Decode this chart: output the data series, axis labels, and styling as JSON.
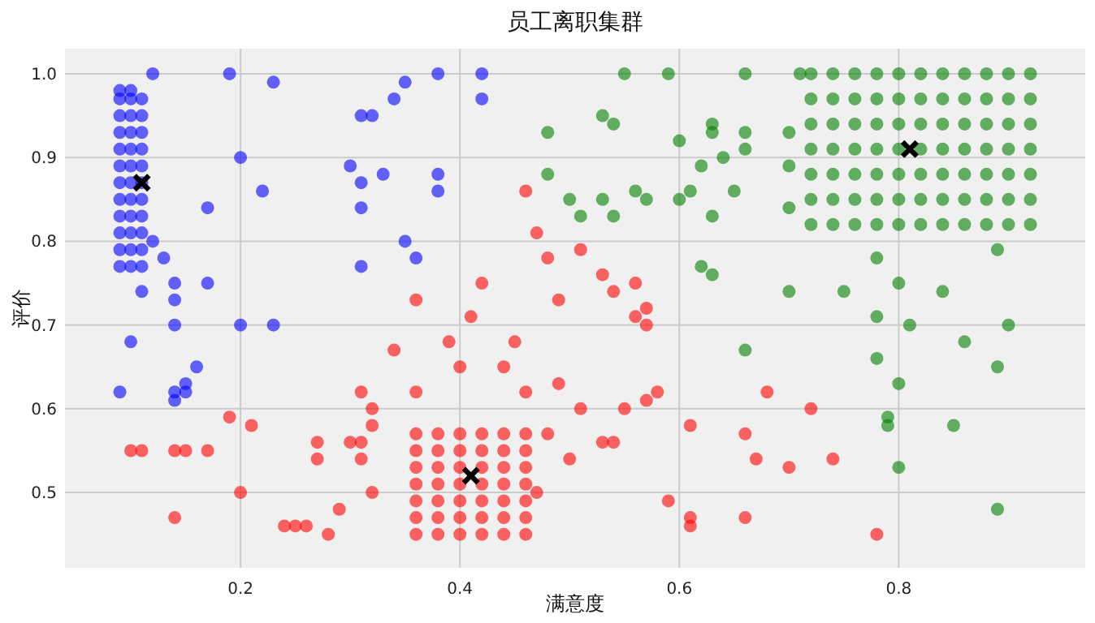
{
  "chart_data": {
    "type": "scatter",
    "title": "员工离职集群",
    "xlabel": "满意度",
    "ylabel": "评价",
    "xlim": [
      0.04,
      0.97
    ],
    "ylim": [
      0.41,
      1.03
    ],
    "xticks": [
      0.2,
      0.4,
      0.6,
      0.8
    ],
    "yticks": [
      0.5,
      0.6,
      0.7,
      0.8,
      0.9,
      {
        "value": 1,
        "label": "1.0"
      }
    ],
    "grid": true,
    "marker": "circle",
    "series": [
      {
        "color": "#0000ff",
        "x": [
          0.09,
          0.09,
          0.09,
          0.09,
          0.09,
          0.09,
          0.09,
          0.09,
          0.09,
          0.09,
          0.09,
          0.09,
          0.1,
          0.1,
          0.1,
          0.1,
          0.1,
          0.1,
          0.1,
          0.1,
          0.1,
          0.1,
          0.1,
          0.1,
          0.11,
          0.11,
          0.11,
          0.11,
          0.11,
          0.11,
          0.11,
          0.11,
          0.11,
          0.11,
          0.11,
          0.12,
          0.19,
          0.23,
          0.35,
          0.34,
          0.38,
          0.42,
          0.42,
          0.31,
          0.32,
          0.2,
          0.3,
          0.31,
          0.33,
          0.38,
          0.38,
          0.22,
          0.31,
          0.17,
          0.35,
          0.12,
          0.13,
          0.36,
          0.31,
          0.14,
          0.17,
          0.11,
          0.14,
          0.14,
          0.2,
          0.23,
          0.1,
          0.16,
          0.15,
          0.09,
          0.14,
          0.15,
          0.14
        ],
        "values": [
          0.77,
          0.79,
          0.81,
          0.83,
          0.85,
          0.87,
          0.89,
          0.91,
          0.93,
          0.95,
          0.97,
          0.98,
          0.77,
          0.79,
          0.81,
          0.83,
          0.85,
          0.87,
          0.89,
          0.91,
          0.93,
          0.95,
          0.97,
          0.98,
          0.77,
          0.79,
          0.81,
          0.83,
          0.85,
          0.87,
          0.89,
          0.91,
          0.93,
          0.95,
          0.97,
          1.0,
          1.0,
          0.99,
          0.99,
          0.97,
          1.0,
          1.0,
          0.97,
          0.95,
          0.95,
          0.9,
          0.89,
          0.87,
          0.88,
          0.88,
          0.86,
          0.86,
          0.84,
          0.84,
          0.8,
          0.8,
          0.78,
          0.78,
          0.77,
          0.75,
          0.75,
          0.74,
          0.73,
          0.7,
          0.7,
          0.7,
          0.68,
          0.65,
          0.63,
          0.62,
          0.62,
          0.62,
          0.61
        ]
      },
      {
        "color": "#ff0000",
        "x": [
          0.36,
          0.36,
          0.36,
          0.36,
          0.36,
          0.36,
          0.36,
          0.38,
          0.38,
          0.38,
          0.38,
          0.38,
          0.38,
          0.38,
          0.4,
          0.4,
          0.4,
          0.4,
          0.4,
          0.4,
          0.4,
          0.42,
          0.42,
          0.42,
          0.42,
          0.42,
          0.42,
          0.42,
          0.44,
          0.44,
          0.44,
          0.44,
          0.44,
          0.44,
          0.44,
          0.46,
          0.46,
          0.46,
          0.46,
          0.46,
          0.46,
          0.46,
          0.19,
          0.21,
          0.1,
          0.11,
          0.14,
          0.15,
          0.17,
          0.27,
          0.27,
          0.3,
          0.31,
          0.31,
          0.31,
          0.32,
          0.32,
          0.2,
          0.32,
          0.14,
          0.24,
          0.25,
          0.26,
          0.28,
          0.29,
          0.34,
          0.36,
          0.36,
          0.39,
          0.4,
          0.41,
          0.42,
          0.44,
          0.45,
          0.46,
          0.46,
          0.47,
          0.48,
          0.48,
          0.47,
          0.51,
          0.53,
          0.54,
          0.56,
          0.49,
          0.56,
          0.57,
          0.57,
          0.49,
          0.51,
          0.55,
          0.57,
          0.58,
          0.53,
          0.54,
          0.5,
          0.61,
          0.66,
          0.68,
          0.72,
          0.67,
          0.7,
          0.74,
          0.59,
          0.61,
          0.61,
          0.66,
          0.78
        ],
        "values": [
          0.45,
          0.47,
          0.49,
          0.51,
          0.53,
          0.55,
          0.57,
          0.45,
          0.47,
          0.49,
          0.51,
          0.53,
          0.55,
          0.57,
          0.45,
          0.47,
          0.49,
          0.51,
          0.53,
          0.55,
          0.57,
          0.45,
          0.47,
          0.49,
          0.51,
          0.53,
          0.55,
          0.57,
          0.45,
          0.47,
          0.49,
          0.51,
          0.53,
          0.55,
          0.57,
          0.45,
          0.47,
          0.49,
          0.51,
          0.53,
          0.55,
          0.57,
          0.59,
          0.58,
          0.55,
          0.55,
          0.55,
          0.55,
          0.55,
          0.56,
          0.54,
          0.56,
          0.56,
          0.54,
          0.62,
          0.6,
          0.58,
          0.5,
          0.5,
          0.47,
          0.46,
          0.46,
          0.46,
          0.45,
          0.48,
          0.67,
          0.62,
          0.73,
          0.68,
          0.65,
          0.71,
          0.75,
          0.65,
          0.68,
          0.62,
          0.86,
          0.81,
          0.78,
          0.57,
          0.5,
          0.79,
          0.76,
          0.74,
          0.75,
          0.73,
          0.71,
          0.72,
          0.7,
          0.63,
          0.6,
          0.6,
          0.61,
          0.62,
          0.56,
          0.56,
          0.54,
          0.58,
          0.57,
          0.62,
          0.6,
          0.54,
          0.53,
          0.54,
          0.49,
          0.47,
          0.46,
          0.47,
          0.45
        ]
      },
      {
        "color": "#008000",
        "x": [
          0.72,
          0.72,
          0.72,
          0.72,
          0.72,
          0.72,
          0.72,
          0.74,
          0.74,
          0.74,
          0.74,
          0.74,
          0.74,
          0.74,
          0.76,
          0.76,
          0.76,
          0.76,
          0.76,
          0.76,
          0.76,
          0.78,
          0.78,
          0.78,
          0.78,
          0.78,
          0.78,
          0.78,
          0.8,
          0.8,
          0.8,
          0.8,
          0.8,
          0.8,
          0.8,
          0.82,
          0.82,
          0.82,
          0.82,
          0.82,
          0.82,
          0.82,
          0.84,
          0.84,
          0.84,
          0.84,
          0.84,
          0.84,
          0.84,
          0.86,
          0.86,
          0.86,
          0.86,
          0.86,
          0.86,
          0.86,
          0.88,
          0.88,
          0.88,
          0.88,
          0.88,
          0.88,
          0.88,
          0.9,
          0.9,
          0.9,
          0.9,
          0.9,
          0.9,
          0.9,
          0.92,
          0.92,
          0.92,
          0.92,
          0.92,
          0.92,
          0.92,
          0.55,
          0.59,
          0.66,
          0.71,
          0.53,
          0.54,
          0.48,
          0.6,
          0.63,
          0.63,
          0.66,
          0.66,
          0.7,
          0.64,
          0.62,
          0.48,
          0.7,
          0.5,
          0.53,
          0.56,
          0.57,
          0.6,
          0.61,
          0.65,
          0.51,
          0.54,
          0.63,
          0.7,
          0.62,
          0.63,
          0.7,
          0.75,
          0.78,
          0.89,
          0.8,
          0.84,
          0.78,
          0.81,
          0.9,
          0.86,
          0.66,
          0.78,
          0.89,
          0.8,
          0.79,
          0.79,
          0.85,
          0.8,
          0.89
        ],
        "values": [
          1.0,
          0.97,
          0.94,
          0.91,
          0.88,
          0.85,
          0.82,
          1.0,
          0.97,
          0.94,
          0.91,
          0.88,
          0.85,
          0.82,
          1.0,
          0.97,
          0.94,
          0.91,
          0.88,
          0.85,
          0.82,
          1.0,
          0.97,
          0.94,
          0.91,
          0.88,
          0.85,
          0.82,
          1.0,
          0.97,
          0.94,
          0.91,
          0.88,
          0.85,
          0.82,
          1.0,
          0.97,
          0.94,
          0.91,
          0.88,
          0.85,
          0.82,
          1.0,
          0.97,
          0.94,
          0.91,
          0.88,
          0.85,
          0.82,
          1.0,
          0.97,
          0.94,
          0.91,
          0.88,
          0.85,
          0.82,
          1.0,
          0.97,
          0.94,
          0.91,
          0.88,
          0.85,
          0.82,
          1.0,
          0.97,
          0.94,
          0.91,
          0.88,
          0.85,
          0.82,
          1.0,
          0.97,
          0.94,
          0.91,
          0.88,
          0.85,
          0.82,
          1.0,
          1.0,
          1.0,
          1.0,
          0.95,
          0.94,
          0.93,
          0.92,
          0.94,
          0.93,
          0.93,
          0.91,
          0.93,
          0.9,
          0.89,
          0.88,
          0.89,
          0.85,
          0.85,
          0.86,
          0.85,
          0.85,
          0.86,
          0.86,
          0.83,
          0.83,
          0.83,
          0.84,
          0.77,
          0.76,
          0.74,
          0.74,
          0.78,
          0.79,
          0.75,
          0.74,
          0.71,
          0.7,
          0.7,
          0.68,
          0.67,
          0.66,
          0.65,
          0.63,
          0.59,
          0.58,
          0.58,
          0.53,
          0.48
        ]
      },
      {
        "color": "#000000",
        "marker": "cross",
        "x": [
          0.11,
          0.41,
          0.81
        ],
        "values": [
          0.87,
          0.52,
          0.91
        ]
      }
    ]
  }
}
